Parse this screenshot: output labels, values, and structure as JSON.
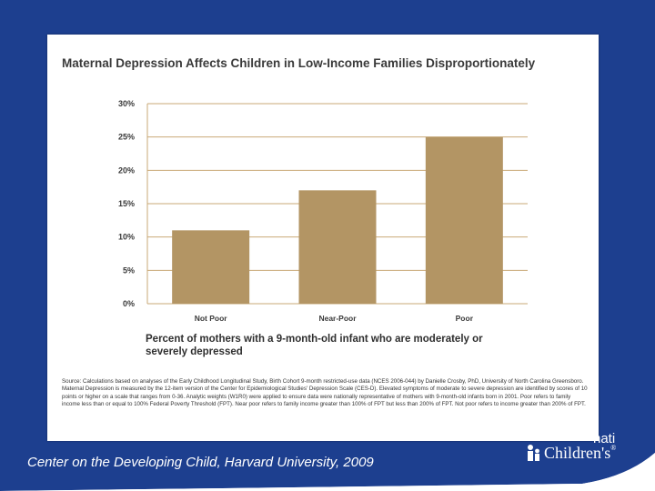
{
  "chart_data": {
    "type": "bar",
    "title": "Maternal Depression Affects Children in Low-Income Families Disproportionately",
    "categories": [
      "Not Poor",
      "Near-Poor",
      "Poor"
    ],
    "values": [
      11,
      17,
      25
    ],
    "ylim": [
      0,
      30
    ],
    "yticks": [
      "0%",
      "5%",
      "10%",
      "15%",
      "20%",
      "25%",
      "30%"
    ],
    "grid": true,
    "bar_color": "#b39564",
    "grid_color": "#c9a977"
  },
  "caption": "Percent of mothers with a 9-month-old infant who are moderately or severely depressed",
  "source": "Source: Calculations based on analyses of the Early Childhood Longitudinal Study, Birth Cohort 9-month restricted-use data (NCES 2006-044) by Danielle Crosby, PhD, University of North Carolina Greensboro. Maternal Depression is measured by the 12-item version of the Center for Epidemiological Studies' Depression Scale (CES-D). Elevated symptoms of moderate to severe depression are identified by scores of 10 points or higher on a scale that ranges from 0-36. Analytic weights (W1R0) were applied to ensure data were nationally representative of mothers with 9-month-old infants born in 2001. Poor refers to family income less than or equal to 100% Federal Poverty Threshold (FPT). Near poor refers to family income greater than 100% of FPT but less than 200% of FPT. Not poor refers to income greater than 200% of FPT.",
  "footer": {
    "credit": "Center on the Developing Child, Harvard University, 2009",
    "logo_partial": "nati",
    "logo_text": "Children's",
    "logo_reg": "®"
  },
  "colors": {
    "background": "#1d3f8f",
    "white": "#ffffff"
  }
}
